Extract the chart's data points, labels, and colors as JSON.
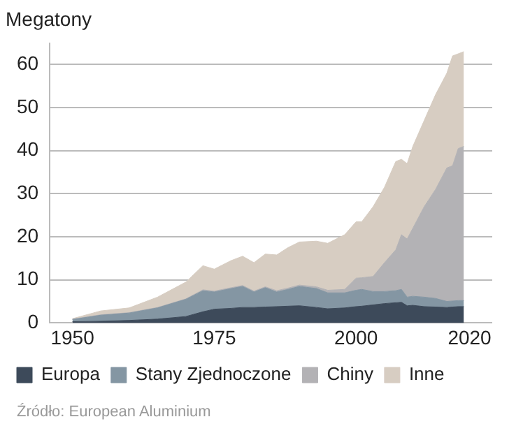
{
  "chart_data": {
    "type": "area",
    "stacked": true,
    "ylabel": "Megatony",
    "x": [
      1950,
      1955,
      1960,
      1965,
      1970,
      1973,
      1975,
      1978,
      1980,
      1982,
      1984,
      1986,
      1988,
      1990,
      1993,
      1995,
      1998,
      2000,
      2001,
      2003,
      2005,
      2007,
      2008,
      2009,
      2010,
      2012,
      2014,
      2016,
      2017,
      2018,
      2019
    ],
    "series": [
      {
        "name": "Europa",
        "color": "#3d4a5a",
        "values": [
          0.3,
          0.4,
          0.6,
          0.9,
          1.5,
          2.6,
          3.2,
          3.4,
          3.6,
          3.6,
          3.7,
          3.8,
          3.9,
          4.0,
          3.6,
          3.3,
          3.5,
          3.8,
          3.9,
          4.2,
          4.5,
          4.7,
          4.8,
          4.0,
          4.1,
          3.8,
          3.7,
          3.6,
          3.7,
          3.8,
          3.8
        ]
      },
      {
        "name": "Stany Zjednoczone",
        "color": "#8496a3",
        "values": [
          0.5,
          1.4,
          1.7,
          2.6,
          4.0,
          4.9,
          4.0,
          4.6,
          4.9,
          3.6,
          4.5,
          3.4,
          3.9,
          4.5,
          4.4,
          3.7,
          3.5,
          3.8,
          3.9,
          3.1,
          2.8,
          2.8,
          3.0,
          2.0,
          2.1,
          2.2,
          2.0,
          1.4,
          1.4,
          1.4,
          1.4
        ]
      },
      {
        "name": "Chiny",
        "color": "#b3b2b5",
        "values": [
          0.1,
          0.1,
          0.1,
          0.1,
          0.1,
          0.2,
          0.2,
          0.2,
          0.2,
          0.2,
          0.2,
          0.3,
          0.3,
          0.3,
          0.4,
          0.6,
          0.8,
          2.8,
          2.7,
          3.5,
          6.7,
          9.5,
          12.7,
          13.5,
          15.8,
          21.0,
          25.3,
          31.0,
          31.4,
          35.3,
          35.8
        ]
      },
      {
        "name": "Inne",
        "color": "#d7cdc2",
        "values": [
          0.1,
          0.9,
          1.1,
          2.4,
          3.9,
          5.6,
          5.1,
          6.3,
          6.8,
          6.6,
          7.6,
          8.3,
          9.4,
          10.0,
          10.6,
          10.9,
          12.7,
          13.1,
          13.0,
          16.2,
          17.5,
          20.5,
          17.5,
          17.5,
          19.0,
          20.0,
          22.0,
          22.0,
          25.5,
          22.0,
          22.0
        ]
      }
    ],
    "xlim": [
      1946,
      2024
    ],
    "xticks": [
      1950,
      1975,
      2000,
      2020
    ],
    "ylim": [
      0,
      65
    ],
    "yticks": [
      0,
      10,
      20,
      30,
      40,
      50,
      60
    ],
    "grid": "y",
    "legend": "bottom",
    "marker": "none",
    "annotations": [
      "Źródło: European Aluminium"
    ]
  }
}
